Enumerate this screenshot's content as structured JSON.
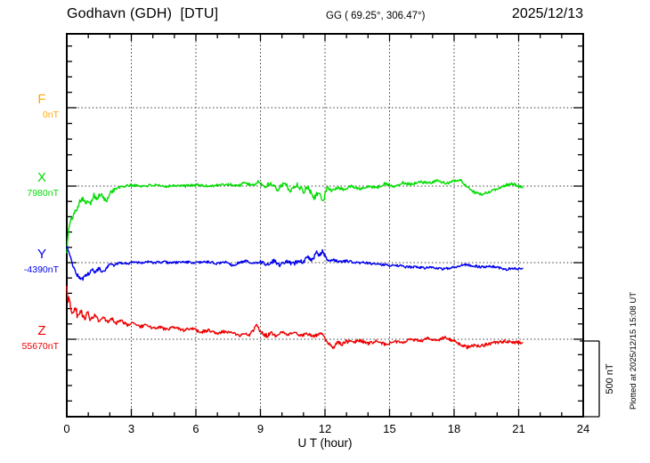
{
  "header": {
    "station_title": "Godhavn (GDH)  [DTU]",
    "geographic_coords": "GG ( 69.25°, 306.47°)",
    "date": "2025/12/13"
  },
  "side_note": "Plotted at 2025/12/15 15:08 UT",
  "scale_bar": {
    "label": "500 nT",
    "span_nT": 500
  },
  "x_axis": {
    "label": "U T (hour)",
    "tick_labels": [
      0,
      3,
      6,
      9,
      12,
      15,
      18,
      21,
      24
    ],
    "minor_tick_hours": 1,
    "range_hours": [
      0,
      24
    ]
  },
  "chart_data": {
    "type": "line",
    "title": "Godhavn (GDH) [DTU] magnetogram for 2025/12/13",
    "xlabel": "U T (hour)",
    "x_range_hours": [
      0,
      24
    ],
    "x_major_ticks_hours": [
      0,
      3,
      6,
      9,
      12,
      15,
      18,
      21,
      24
    ],
    "grid": "dotted horizontal line at each component baseline; dotted vertical line every 3 hours",
    "legend_position": "left margin, one colored letter per component",
    "amplitude_scale": {
      "label": "500 nT",
      "minor_tick_nT": 100
    },
    "data_end_hour": 21.2,
    "points_are": "[UT_hour, offset_nT_from_component_baseline]",
    "series": [
      {
        "id": "F",
        "label": "F",
        "baseline_label": "0nT",
        "baseline_nT": 0,
        "color": "#ffaa00",
        "has_data": false,
        "jitter_nT": 0,
        "points": []
      },
      {
        "id": "X",
        "label": "X",
        "baseline_label": "7980nT",
        "baseline_nT": 7980,
        "color": "#00dd00",
        "has_data": true,
        "jitter_nT": 9,
        "points": [
          [
            0,
            -430
          ],
          [
            0.05,
            -341
          ],
          [
            0.1,
            -271
          ],
          [
            0.2,
            -224
          ],
          [
            0.3,
            -194
          ],
          [
            0.45,
            -153
          ],
          [
            0.6,
            -100
          ],
          [
            0.75,
            -76
          ],
          [
            0.9,
            -124
          ],
          [
            1.0,
            -88
          ],
          [
            1.1,
            -112
          ],
          [
            1.25,
            -59
          ],
          [
            1.4,
            -88
          ],
          [
            1.55,
            -53
          ],
          [
            1.7,
            -76
          ],
          [
            1.85,
            -106
          ],
          [
            2.0,
            -41
          ],
          [
            2.2,
            -24
          ],
          [
            2.4,
            -12
          ],
          [
            2.6,
            -3
          ],
          [
            3.0,
            6
          ],
          [
            3.5,
            0
          ],
          [
            4.0,
            6
          ],
          [
            4.5,
            -3
          ],
          [
            5.0,
            6
          ],
          [
            5.5,
            0
          ],
          [
            6.0,
            9
          ],
          [
            6.5,
            0
          ],
          [
            7.0,
            6
          ],
          [
            7.5,
            12
          ],
          [
            8.0,
            3
          ],
          [
            8.3,
            24
          ],
          [
            8.6,
            0
          ],
          [
            8.9,
            29
          ],
          [
            9.2,
            -6
          ],
          [
            9.5,
            18
          ],
          [
            9.8,
            -18
          ],
          [
            10.1,
            18
          ],
          [
            10.4,
            -29
          ],
          [
            10.7,
            12
          ],
          [
            11.0,
            -35
          ],
          [
            11.2,
            -6
          ],
          [
            11.5,
            -76
          ],
          [
            11.7,
            -35
          ],
          [
            11.9,
            -112
          ],
          [
            12.1,
            0
          ],
          [
            12.3,
            -29
          ],
          [
            12.6,
            -12
          ],
          [
            12.9,
            -24
          ],
          [
            13.2,
            0
          ],
          [
            13.6,
            -18
          ],
          [
            14.0,
            0
          ],
          [
            14.4,
            -12
          ],
          [
            14.8,
            18
          ],
          [
            15.2,
            -6
          ],
          [
            15.6,
            24
          ],
          [
            16.0,
            12
          ],
          [
            16.4,
            29
          ],
          [
            16.8,
            18
          ],
          [
            17.2,
            35
          ],
          [
            17.6,
            18
          ],
          [
            18.0,
            35
          ],
          [
            18.3,
            41
          ],
          [
            18.5,
            6
          ],
          [
            18.8,
            -29
          ],
          [
            19.0,
            -47
          ],
          [
            19.3,
            -53
          ],
          [
            19.6,
            -41
          ],
          [
            20.0,
            -18
          ],
          [
            20.4,
            6
          ],
          [
            20.7,
            15
          ],
          [
            21.0,
            0
          ],
          [
            21.2,
            -6
          ]
        ]
      },
      {
        "id": "Y",
        "label": "Y",
        "baseline_label": "-4390nT",
        "baseline_nT": -4390,
        "color": "#0000ee",
        "has_data": true,
        "jitter_nT": 8,
        "points": [
          [
            0,
            106
          ],
          [
            0.1,
            71
          ],
          [
            0.2,
            29
          ],
          [
            0.3,
            -24
          ],
          [
            0.45,
            -76
          ],
          [
            0.6,
            -100
          ],
          [
            0.75,
            -106
          ],
          [
            0.9,
            -82
          ],
          [
            1.05,
            -71
          ],
          [
            1.2,
            -47
          ],
          [
            1.35,
            -65
          ],
          [
            1.5,
            -35
          ],
          [
            1.65,
            -71
          ],
          [
            1.8,
            -47
          ],
          [
            2.0,
            -12
          ],
          [
            2.2,
            -18
          ],
          [
            2.5,
            0
          ],
          [
            2.8,
            -6
          ],
          [
            3.1,
            6
          ],
          [
            3.4,
            0
          ],
          [
            3.7,
            6
          ],
          [
            4.0,
            0
          ],
          [
            4.5,
            3
          ],
          [
            5.0,
            0
          ],
          [
            5.5,
            6
          ],
          [
            6.0,
            -3
          ],
          [
            6.5,
            6
          ],
          [
            7.0,
            -6
          ],
          [
            7.4,
            6
          ],
          [
            7.7,
            -18
          ],
          [
            8.0,
            0
          ],
          [
            8.3,
            12
          ],
          [
            8.6,
            -6
          ],
          [
            9.0,
            6
          ],
          [
            9.3,
            -12
          ],
          [
            9.6,
            12
          ],
          [
            9.9,
            -18
          ],
          [
            10.2,
            12
          ],
          [
            10.5,
            -12
          ],
          [
            10.8,
            18
          ],
          [
            11.0,
            0
          ],
          [
            11.2,
            41
          ],
          [
            11.4,
            18
          ],
          [
            11.6,
            65
          ],
          [
            11.75,
            47
          ],
          [
            11.9,
            76
          ],
          [
            12.05,
            29
          ],
          [
            12.2,
            12
          ],
          [
            12.4,
            18
          ],
          [
            12.7,
            6
          ],
          [
            13.0,
            12
          ],
          [
            13.4,
            0
          ],
          [
            13.8,
            0
          ],
          [
            14.2,
            -6
          ],
          [
            14.6,
            -12
          ],
          [
            15.0,
            -18
          ],
          [
            15.4,
            -18
          ],
          [
            15.8,
            -29
          ],
          [
            16.2,
            -29
          ],
          [
            16.6,
            -35
          ],
          [
            17.0,
            -29
          ],
          [
            17.4,
            -41
          ],
          [
            17.8,
            -35
          ],
          [
            18.2,
            -24
          ],
          [
            18.5,
            -12
          ],
          [
            18.8,
            -18
          ],
          [
            19.2,
            -29
          ],
          [
            19.6,
            -24
          ],
          [
            20.0,
            -29
          ],
          [
            20.4,
            -47
          ],
          [
            20.7,
            -35
          ],
          [
            21.0,
            -41
          ],
          [
            21.2,
            -35
          ]
        ]
      },
      {
        "id": "Z",
        "label": "Z",
        "baseline_label": "55670nT",
        "baseline_nT": 55670,
        "color": "#ee0000",
        "has_data": true,
        "jitter_nT": 10,
        "points": [
          [
            0,
            329
          ],
          [
            0.05,
            241
          ],
          [
            0.1,
            288
          ],
          [
            0.2,
            194
          ],
          [
            0.3,
            171
          ],
          [
            0.4,
            212
          ],
          [
            0.5,
            153
          ],
          [
            0.65,
            182
          ],
          [
            0.8,
            141
          ],
          [
            0.95,
            171
          ],
          [
            1.1,
            129
          ],
          [
            1.3,
            159
          ],
          [
            1.5,
            118
          ],
          [
            1.7,
            141
          ],
          [
            1.9,
            112
          ],
          [
            2.1,
            135
          ],
          [
            2.3,
            106
          ],
          [
            2.5,
            124
          ],
          [
            2.8,
            94
          ],
          [
            3.1,
            112
          ],
          [
            3.4,
            82
          ],
          [
            3.7,
            94
          ],
          [
            4.0,
            71
          ],
          [
            4.3,
            82
          ],
          [
            4.6,
            65
          ],
          [
            5.0,
            76
          ],
          [
            5.4,
            59
          ],
          [
            5.8,
            71
          ],
          [
            6.2,
            47
          ],
          [
            6.6,
            59
          ],
          [
            7.0,
            41
          ],
          [
            7.4,
            53
          ],
          [
            7.8,
            35
          ],
          [
            8.1,
            24
          ],
          [
            8.3,
            41
          ],
          [
            8.5,
            29
          ],
          [
            8.65,
            53
          ],
          [
            8.8,
            106
          ],
          [
            8.95,
            65
          ],
          [
            9.1,
            35
          ],
          [
            9.3,
            24
          ],
          [
            9.5,
            41
          ],
          [
            9.7,
            24
          ],
          [
            10.0,
            53
          ],
          [
            10.3,
            29
          ],
          [
            10.6,
            41
          ],
          [
            10.9,
            24
          ],
          [
            11.2,
            35
          ],
          [
            11.5,
            18
          ],
          [
            11.8,
            41
          ],
          [
            12.0,
            6
          ],
          [
            12.2,
            -35
          ],
          [
            12.4,
            -53
          ],
          [
            12.6,
            -24
          ],
          [
            12.8,
            -35
          ],
          [
            13.0,
            -12
          ],
          [
            13.3,
            -24
          ],
          [
            13.6,
            -6
          ],
          [
            14.0,
            -29
          ],
          [
            14.4,
            -12
          ],
          [
            14.8,
            -35
          ],
          [
            15.2,
            -12
          ],
          [
            15.6,
            -24
          ],
          [
            16.0,
            0
          ],
          [
            16.4,
            -12
          ],
          [
            16.8,
            6
          ],
          [
            17.2,
            -6
          ],
          [
            17.6,
            12
          ],
          [
            18.0,
            -12
          ],
          [
            18.3,
            -35
          ],
          [
            18.6,
            -53
          ],
          [
            18.9,
            -41
          ],
          [
            19.2,
            -47
          ],
          [
            19.5,
            -35
          ],
          [
            19.8,
            -24
          ],
          [
            20.1,
            -18
          ],
          [
            20.4,
            -12
          ],
          [
            20.7,
            -24
          ],
          [
            21.0,
            -18
          ],
          [
            21.2,
            -24
          ]
        ]
      }
    ]
  }
}
